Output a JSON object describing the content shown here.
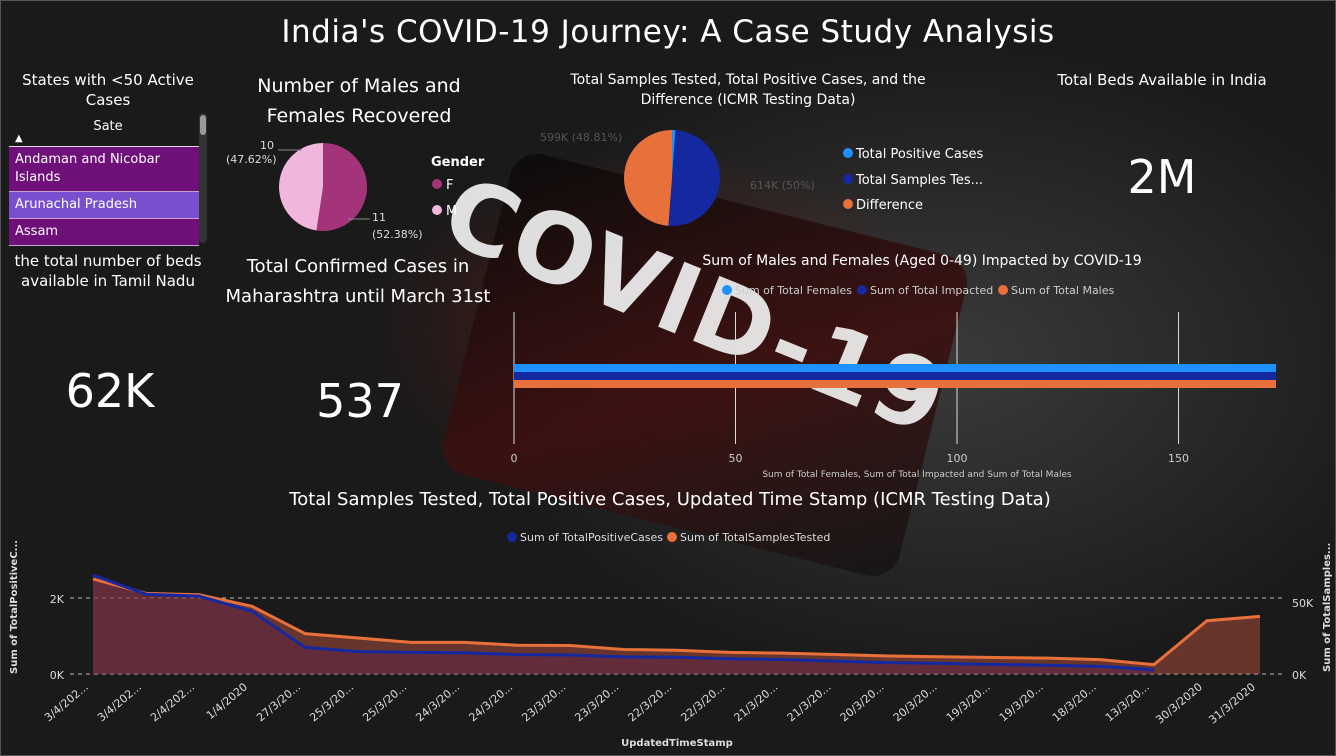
{
  "title": "India's COVID-19 Journey: A Case Study Analysis",
  "background": {
    "word": "COVID-19"
  },
  "colors": {
    "purple": "#6e0f7a",
    "selected": "#7a4fcf",
    "blue": "#1e90ff",
    "navy": "#1428a0",
    "orange": "#e8703a",
    "female": "#a4347a",
    "male": "#f0b6dc"
  },
  "slicer": {
    "title": "States with <50 Active Cases",
    "header": "Sate",
    "items": [
      "Andaman and Nicobar Islands",
      "Arunachal Pradesh",
      "Assam"
    ]
  },
  "beds_tn": {
    "title": "the total number of beds available in Tamil Nadu",
    "value": "62K"
  },
  "maharashtra": {
    "title": "Total Confirmed Cases in Maharashtra until March 31st",
    "value": "537"
  },
  "beds_india": {
    "title": "Total Beds Available in India",
    "value": "2M"
  },
  "gender_pie": {
    "title": "Number of Males and Females Recovered",
    "legend_title": "Gender",
    "labels": {
      "m": "10",
      "m_pct": "(47.62%)",
      "f": "11",
      "f_pct": "(52.38%)"
    },
    "legend": [
      "F",
      "M"
    ]
  },
  "icmr_pie": {
    "title": "Total Samples Tested, Total Positive Cases, and the Difference (ICMR Testing Data)",
    "label_left": "599K (48.81%)",
    "label_right": "614K (50%)",
    "legend": [
      "Total Positive Cases",
      "Total Samples Tes...",
      "Difference"
    ]
  },
  "bar_chart": {
    "title": "Sum of Males and Females (Aged 0-49) Impacted by COVID-19",
    "legend": [
      "Sum of Total Females",
      "Sum of Total Impacted",
      "Sum of Total Males"
    ],
    "xlabel": "Sum of Total Females, Sum of Total Impacted and Sum of Total Males",
    "ticks": [
      "0",
      "50",
      "100",
      "150"
    ]
  },
  "line_chart": {
    "title": "Total Samples Tested, Total Positive Cases, Updated Time Stamp (ICMR Testing Data)",
    "legend": [
      "Sum of TotalPositiveCases",
      "Sum of TotalSamplesTested"
    ],
    "ylabel_left": "Sum of TotalPositiveC...",
    "ylabel_right": "Sum of TotalSamples...",
    "xlabel": "UpdatedTimeStamp",
    "yticks_left": [
      "2K",
      "0K"
    ],
    "yticks_right": [
      "50K",
      "0K"
    ]
  },
  "chart_data": [
    {
      "type": "pie",
      "title": "Number of Males and Females Recovered",
      "categories": [
        "F",
        "M"
      ],
      "values": [
        11,
        10
      ]
    },
    {
      "type": "pie",
      "title": "Total Samples Tested, Total Positive Cases, and the Difference (ICMR Testing Data)",
      "categories": [
        "Total Positive Cases",
        "Total Samples Tested",
        "Difference"
      ],
      "values": [
        14500,
        614000,
        599000
      ]
    },
    {
      "type": "bar",
      "title": "Sum of Males and Females (Aged 0-49) Impacted by COVID-19",
      "orientation": "horizontal",
      "series": [
        {
          "name": "Sum of Total Females",
          "values": [
            172
          ]
        },
        {
          "name": "Sum of Total Impacted",
          "values": [
            172
          ]
        },
        {
          "name": "Sum of Total Males",
          "values": [
            172
          ]
        }
      ],
      "xlim": [
        0,
        172
      ]
    },
    {
      "type": "line",
      "title": "Total Samples Tested, Total Positive Cases, Updated Time Stamp (ICMR Testing Data)",
      "categories": [
        "3/4/202...",
        "3/4/202...",
        "2/4/202...",
        "1/4/2020",
        "27/3/20...",
        "25/3/20...",
        "25/3/20...",
        "24/3/20...",
        "24/3/20...",
        "23/3/20...",
        "23/3/20...",
        "22/3/20...",
        "22/3/20...",
        "21/3/20...",
        "21/3/20...",
        "20/3/20...",
        "20/3/20...",
        "19/3/20...",
        "19/3/20...",
        "18/3/20...",
        "13/3/20...",
        "30/3/2020",
        "31/3/2020"
      ],
      "series": [
        {
          "name": "Sum of TotalPositiveCases",
          "axis": "left",
          "values": [
            2600,
            2100,
            2050,
            1650,
            700,
            590,
            570,
            560,
            510,
            500,
            450,
            440,
            400,
            380,
            340,
            300,
            280,
            250,
            230,
            200,
            110,
            null,
            null
          ]
        },
        {
          "name": "Sum of TotalSamplesTested",
          "axis": "right",
          "values": [
            66000,
            56000,
            55000,
            47000,
            28000,
            25000,
            22000,
            22000,
            20000,
            19800,
            17000,
            16500,
            15000,
            14500,
            13500,
            12500,
            12000,
            11500,
            11000,
            10000,
            6500,
            37000,
            40000
          ]
        }
      ],
      "ylim_left": [
        0,
        2700
      ],
      "ylim_right": [
        0,
        68000
      ]
    }
  ]
}
